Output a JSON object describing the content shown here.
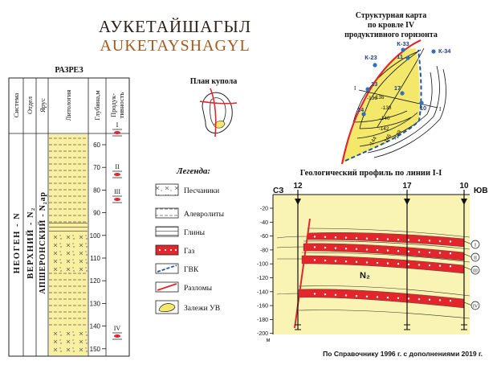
{
  "title": "АУКЕТАЙШАГЫЛ",
  "title_latin": "AUKETAYSHAGYL",
  "colors": {
    "title_dark": "#2b1f17",
    "title_brown": "#a2591f",
    "reservoir_yellow": "#f3e86a",
    "gas_red": "#e2262c",
    "fault_red": "#e2262c",
    "gvk_blue": "#1f56a8",
    "well_blue": "#2e6fbf",
    "profile_bg": "#faf4b4"
  },
  "section": {
    "title": "РАЗРЕЗ",
    "headers": {
      "system": "Система",
      "series": "Отдел",
      "stage": "Ярус",
      "lithology": "Литология",
      "depth": "Глубина,м",
      "productivity": "Продук-тивность"
    },
    "system_label": "НЕОГЕН - N",
    "series_label": "ВЕРХНИЙ - N₂",
    "stage_label": "АПШЕРОНСКИЙ - N₂ap",
    "depth_ticks": [
      "60",
      "70",
      "80",
      "90",
      "100",
      "110",
      "120",
      "130",
      "140",
      "150"
    ],
    "horizons": [
      "I",
      "II",
      "III",
      "IV"
    ]
  },
  "dome_plan": {
    "title": "План купола"
  },
  "legend": {
    "title": "Легенда:",
    "items": [
      {
        "icon": "sandstone-pattern",
        "label": "Песчаники"
      },
      {
        "icon": "siltstone-pattern",
        "label": "Алевролиты"
      },
      {
        "icon": "clay-pattern",
        "label": "Глины"
      },
      {
        "icon": "gas-pattern",
        "label": "Газ"
      },
      {
        "icon": "gvk-dashed-line",
        "label": "ГВК"
      },
      {
        "icon": "fault-line",
        "label": "Разломы"
      },
      {
        "icon": "deposit-shape",
        "label": "Залежи УВ"
      }
    ]
  },
  "structural_map": {
    "title_lines": [
      "Структурная карта",
      "по кровле IV",
      "продуктивного горизонта"
    ],
    "wells": [
      {
        "name": "К-33"
      },
      {
        "name": "К-34"
      },
      {
        "name": "К-23"
      },
      {
        "name": "11"
      },
      {
        "name": "13"
      },
      {
        "name": "17"
      },
      {
        "name": "14"
      },
      {
        "name": "10"
      }
    ],
    "contours": [
      "-136",
      "-138",
      "-140",
      "-142",
      "-144",
      "-146",
      "-148"
    ],
    "profile_line_labels": [
      "I",
      "I"
    ]
  },
  "profile": {
    "title": "Геологический профиль по линии I-I",
    "left_dir": "СЗ",
    "right_dir": "ЮВ",
    "wells": [
      "12",
      "17",
      "10"
    ],
    "y_ticks": [
      "-20",
      "-40",
      "-60",
      "-80",
      "-100",
      "-120",
      "-140",
      "-160",
      "-180",
      "-200"
    ],
    "y_unit": "м",
    "formation": "N₂",
    "horizons": [
      "I",
      "II",
      "III",
      "IV"
    ]
  },
  "source": "По Справочнику 1996 г. с дополнениями 2019 г."
}
